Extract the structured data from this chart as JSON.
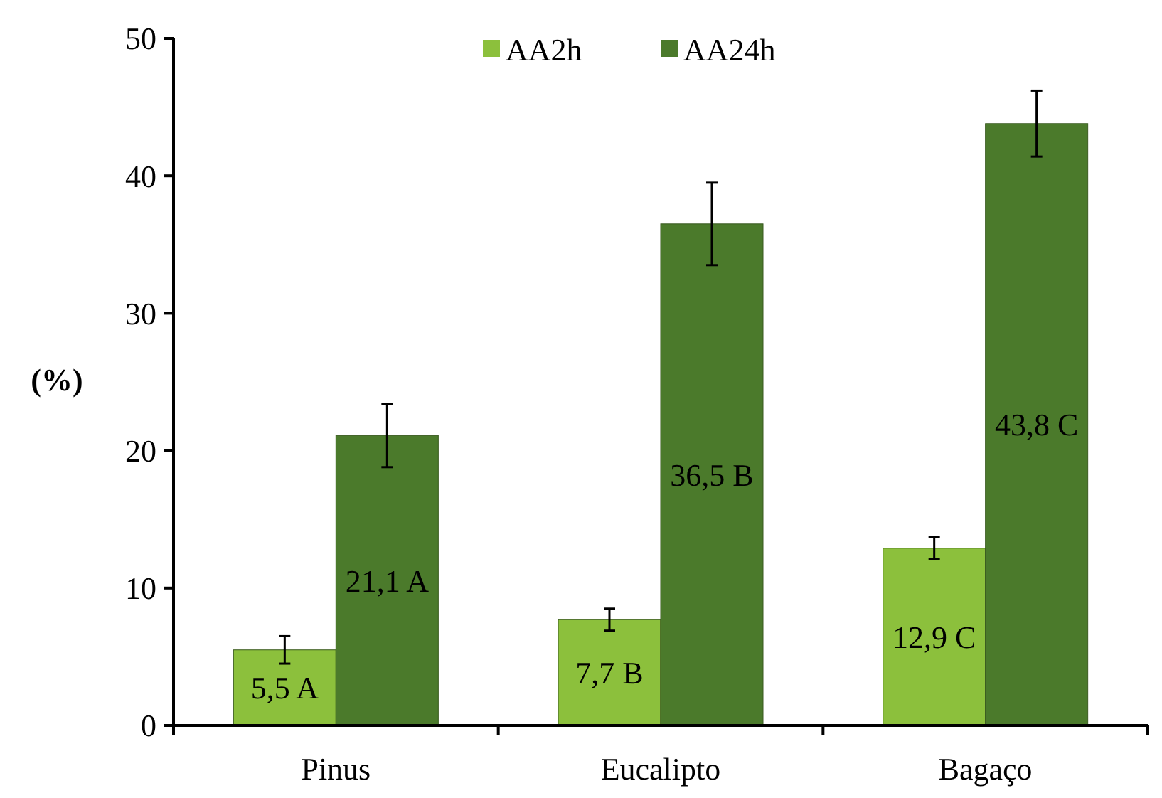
{
  "chart_data": {
    "type": "bar",
    "ylabel": "(%)",
    "categories": [
      "Pinus",
      "Eucalipto",
      "Bagaço"
    ],
    "series": [
      {
        "name": "AA2h",
        "color": "#8cc03c",
        "values": [
          5.5,
          7.7,
          12.9
        ],
        "errors": [
          1.0,
          0.8,
          0.8
        ],
        "value_labels": [
          "5,5 A",
          "7,7 B",
          "12,9 C"
        ]
      },
      {
        "name": "AA24h",
        "color": "#4b7a2b",
        "values": [
          21.1,
          36.5,
          43.8
        ],
        "errors": [
          2.3,
          3.0,
          2.4
        ],
        "value_labels": [
          "21,1 A",
          "36,5 B",
          "43,8 C"
        ]
      }
    ],
    "ylim": [
      0,
      50
    ],
    "yticks": [
      0,
      10,
      20,
      30,
      40,
      50
    ],
    "legend": "top",
    "grid": false
  }
}
